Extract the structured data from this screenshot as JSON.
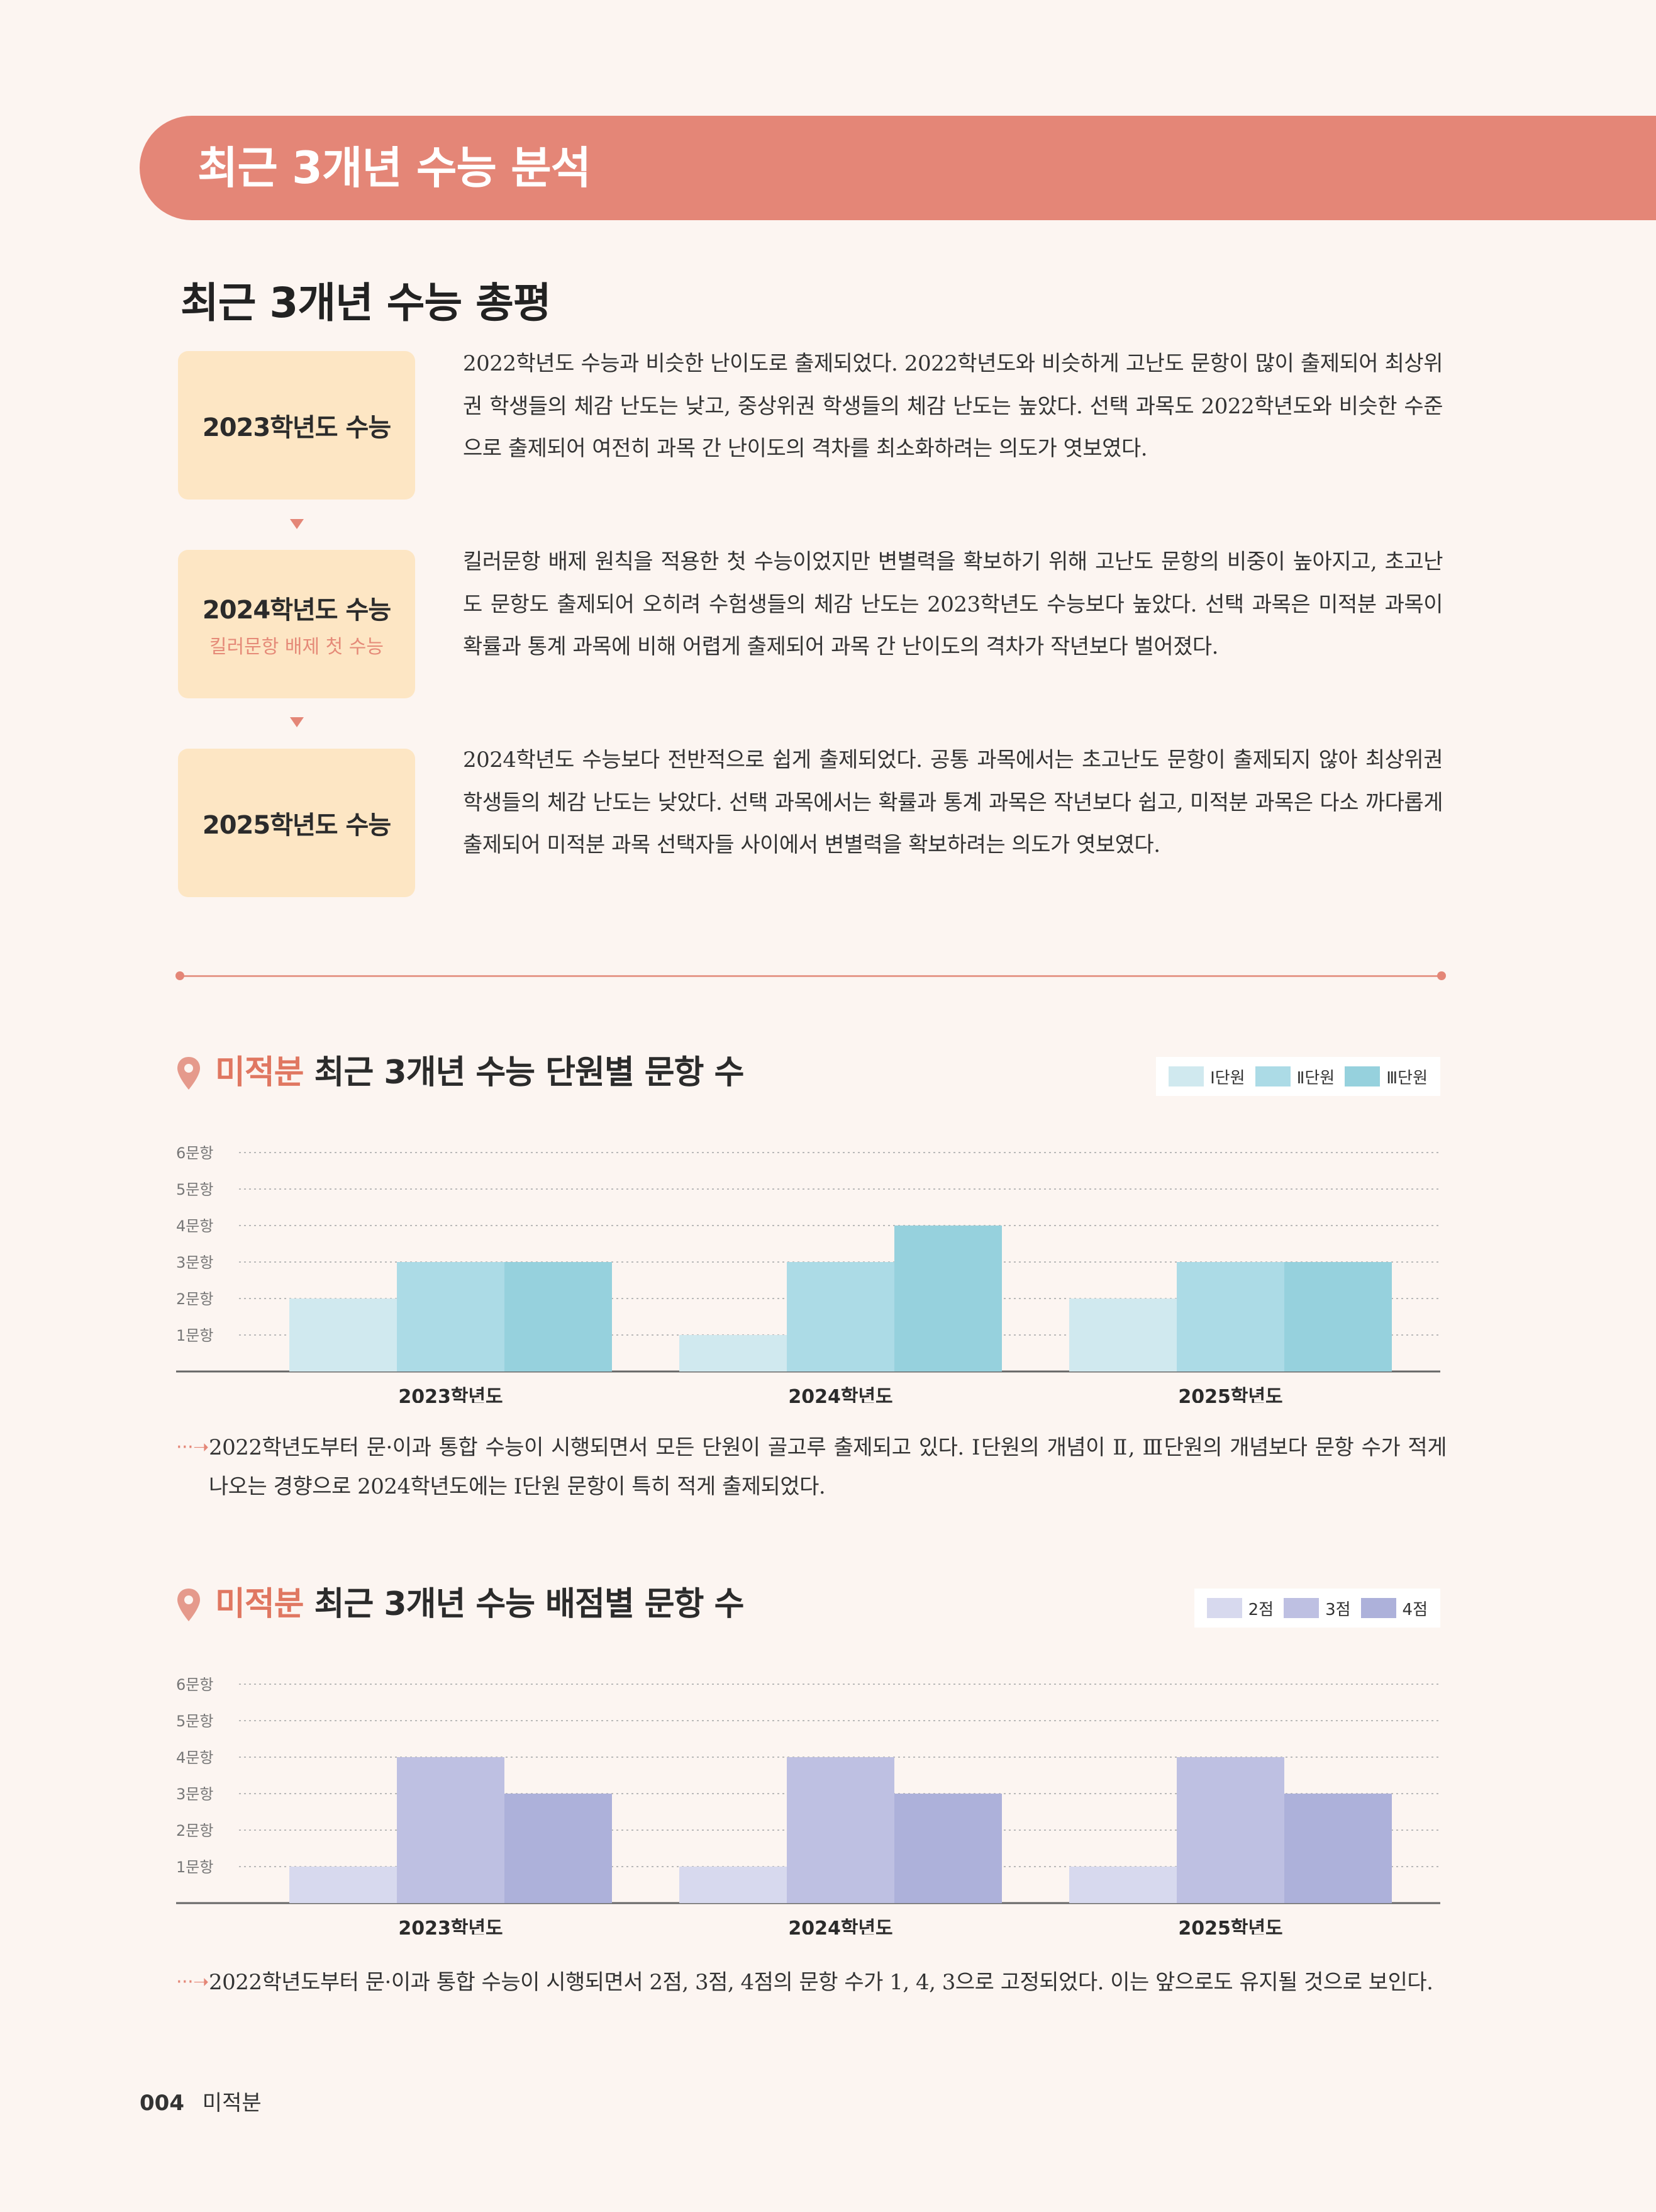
{
  "banner": {
    "title": "최근 3개년 수능 분석"
  },
  "overview": {
    "title": "최근 3개년 수능 총평",
    "items": [
      {
        "year": "2023학년도 수능",
        "sub": "",
        "text": "2022학년도 수능과 비슷한 난이도로 출제되었다. 2022학년도와 비슷하게 고난도 문항이 많이 출제되어 최상위권 학생들의 체감 난도는 낮고, 중상위권 학생들의 체감 난도는 높았다. 선택 과목도 2022학년도와 비슷한 수준으로 출제되어 여전히 과목 간 난이도의 격차를 최소화하려는 의도가 엿보였다."
      },
      {
        "year": "2024학년도 수능",
        "sub": "킬러문항 배제 첫 수능",
        "text": "킬러문항 배제 원칙을 적용한 첫 수능이었지만 변별력을 확보하기 위해 고난도 문항의 비중이 높아지고, 초고난도 문항도 출제되어 오히려 수험생들의 체감 난도는 2023학년도 수능보다 높았다. 선택 과목은 미적분 과목이 확률과 통계 과목에 비해 어렵게 출제되어 과목 간 난이도의 격차가 작년보다 벌어졌다."
      },
      {
        "year": "2025학년도 수능",
        "sub": "",
        "text": "2024학년도 수능보다 전반적으로 쉽게 출제되었다. 공통 과목에서는 초고난도 문항이 출제되지 않아 최상위권 학생들의 체감 난도는 낮았다. 선택 과목에서는 확률과 통계 과목은 작년보다 쉽고, 미적분 과목은 다소 까다롭게 출제되어 미적분 과목 선택자들 사이에서 변별력을 확보하려는 의도가 엿보였다."
      }
    ]
  },
  "chart1": {
    "accent": "미적분",
    "title_rest": "최근 3개년 수능 단원별 문항 수",
    "note": "2022학년도부터 문·이과 통합 수능이 시행되면서 모든 단원이 골고루 출제되고 있다. Ⅰ단원의 개념이 Ⅱ, Ⅲ단원의 개념보다 문항 수가 적게 나오는 경향으로 2024학년도에는 Ⅰ단원 문항이 특히 적게 출제되었다."
  },
  "chart2": {
    "accent": "미적분",
    "title_rest": "최근 3개년 수능 배점별 문항 수",
    "note": "2022학년도부터 문·이과 통합 수능이 시행되면서 2점, 3점, 4점의 문항 수가 1, 4, 3으로 고정되었다. 이는 앞으로도 유지될 것으로 보인다."
  },
  "chart_data": [
    {
      "type": "bar",
      "title": "미적분 최근 3개년 수능 단원별 문항 수",
      "categories": [
        "2023학년도",
        "2024학년도",
        "2025학년도"
      ],
      "series": [
        {
          "name": "Ⅰ단원",
          "values": [
            2,
            1,
            2
          ],
          "color": "#d0e9ef"
        },
        {
          "name": "Ⅱ단원",
          "values": [
            3,
            3,
            3
          ],
          "color": "#acdbe6"
        },
        {
          "name": "Ⅲ단원",
          "values": [
            3,
            4,
            3
          ],
          "color": "#96d1dd"
        }
      ],
      "yticks": [
        "1문항",
        "2문항",
        "3문항",
        "4문항",
        "5문항",
        "6문항"
      ],
      "ylim": [
        0,
        6
      ],
      "grid": true,
      "legend": "top-right"
    },
    {
      "type": "bar",
      "title": "미적분 최근 3개년 수능 배점별 문항 수",
      "categories": [
        "2023학년도",
        "2024학년도",
        "2025학년도"
      ],
      "series": [
        {
          "name": "2점",
          "values": [
            1,
            1,
            1
          ],
          "color": "#d7d9ee"
        },
        {
          "name": "3점",
          "values": [
            4,
            4,
            4
          ],
          "color": "#bec0e2"
        },
        {
          "name": "4점",
          "values": [
            3,
            3,
            3
          ],
          "color": "#adb1da"
        }
      ],
      "yticks": [
        "1문항",
        "2문항",
        "3문항",
        "4문항",
        "5문항",
        "6문항"
      ],
      "ylim": [
        0,
        6
      ],
      "grid": true,
      "legend": "top-right"
    }
  ],
  "footer": {
    "page": "004",
    "subject": "미적분"
  }
}
